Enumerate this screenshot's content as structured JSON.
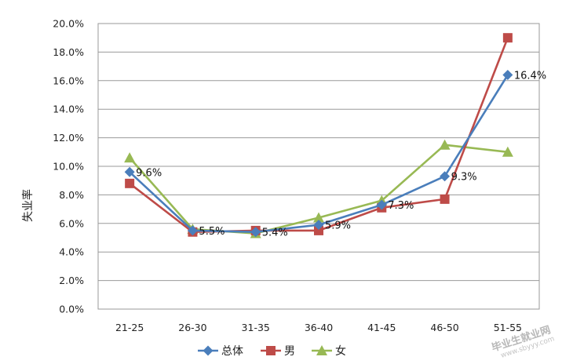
{
  "chart_data": {
    "type": "line",
    "categories": [
      "21-25",
      "26-30",
      "31-35",
      "36-40",
      "41-45",
      "46-50",
      "51-55"
    ],
    "ylabel": "失业率",
    "ylim": [
      0,
      20
    ],
    "y_ticks": [
      "0.0%",
      "2.0%",
      "4.0%",
      "6.0%",
      "8.0%",
      "10.0%",
      "12.0%",
      "14.0%",
      "16.0%",
      "18.0%",
      "20.0%"
    ],
    "grid": true,
    "legend_position": "bottom",
    "series": [
      {
        "name": "总体",
        "color": "#4a7ebb",
        "marker": "diamond",
        "values": [
          9.6,
          5.5,
          5.4,
          5.9,
          7.3,
          9.3,
          16.4
        ],
        "labels": [
          "9.6%",
          "5.5%",
          "5.4%",
          "5.9%",
          "7.3%",
          "9.3%",
          "16.4%"
        ]
      },
      {
        "name": "男",
        "color": "#be4b48",
        "marker": "square",
        "values": [
          8.8,
          5.4,
          5.5,
          5.5,
          7.1,
          7.7,
          19.0
        ]
      },
      {
        "name": "女",
        "color": "#98b954",
        "marker": "triangle",
        "values": [
          10.6,
          5.6,
          5.3,
          6.4,
          7.6,
          11.5,
          11.0
        ]
      }
    ]
  },
  "watermark": {
    "text": "毕业生就业网",
    "url": "www.sbyyy.com"
  }
}
